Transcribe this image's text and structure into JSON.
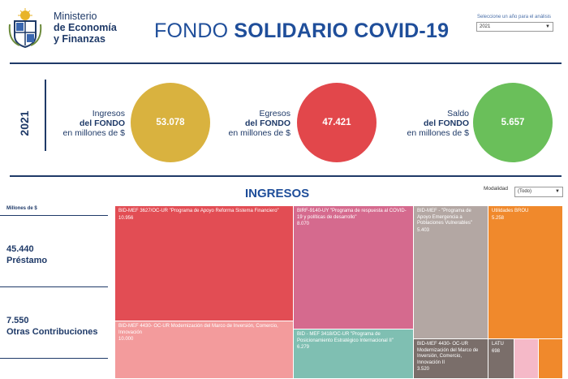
{
  "header": {
    "ministry_line1": "Ministerio",
    "ministry_line2": "de Economía",
    "ministry_line3": "y Finanzas",
    "title_regular": "FONDO ",
    "title_bold": "SOLIDARIO COVID-19",
    "year_select_label": "Seleccione un año para el análisis",
    "year_select_value": "2021"
  },
  "summary": {
    "year": "2021",
    "ingresos": {
      "l1": "Ingresos",
      "l2": "del FONDO",
      "l3": "en millones de $",
      "value": "53.078",
      "color": "#d9b23f"
    },
    "egresos": {
      "l1": "Egresos",
      "l2": "del FONDO",
      "l3": "en millones de $",
      "value": "47.421",
      "color": "#e2474b"
    },
    "saldo": {
      "l1": "Saldo",
      "l2": "del FONDO",
      "l3": "en millones de $",
      "value": "5.657",
      "color": "#6abf5a"
    }
  },
  "ingresos_section": {
    "title": "INGRESOS",
    "modalidad_label": "Modalidad",
    "modalidad_value": "(Todo)",
    "units": "Millones de $",
    "side": [
      {
        "value": "45.440",
        "label": "Préstamo"
      },
      {
        "value": "7.550",
        "label": "Otras Contribuciones"
      }
    ],
    "tiles": [
      {
        "name": "BID-MEF 3627/OC-UR \"Programa de Apoyo Reforma Sistema Financiero\"",
        "value": "10.956",
        "color": "#e24d54"
      },
      {
        "name": "BIRF-9140-UY \"Programa de respuesta al COVID-19 y políticas de desarrollo\"",
        "value": "8.070",
        "color": "#d56a8e"
      },
      {
        "name": "BID-MEF - \"Programa de Apoyo Emergencia a Poblaciones Vulnerables\"",
        "value": "5.403",
        "color": "#b3a7a3"
      },
      {
        "name": "Utilidades BROU",
        "value": "5.258",
        "color": "#f0892c"
      },
      {
        "name": "BID-MEF 4430- OC-UR Modernización del Marco de Inversión, Comercio, Innovación",
        "value": "10.000",
        "color": "#f39b9c"
      },
      {
        "name": "BID - MEF 3418/OC-UR \"Programa de Posicionamiento Estratégico Internacional II\"",
        "value": "6.279",
        "color": "#7fbfb2"
      },
      {
        "name": "BID-MEF 4430- OC-UR Modernización del Marco de Inversión, Comercio, Innovación II",
        "value": "3.520",
        "color": "#7a6e6a"
      },
      {
        "name": "LATU",
        "value": "698",
        "color": "#7a6e6a"
      },
      {
        "name": "",
        "value": "",
        "color": "#f5b9c8"
      },
      {
        "name": "",
        "value": "",
        "color": "#f0892c"
      }
    ]
  }
}
